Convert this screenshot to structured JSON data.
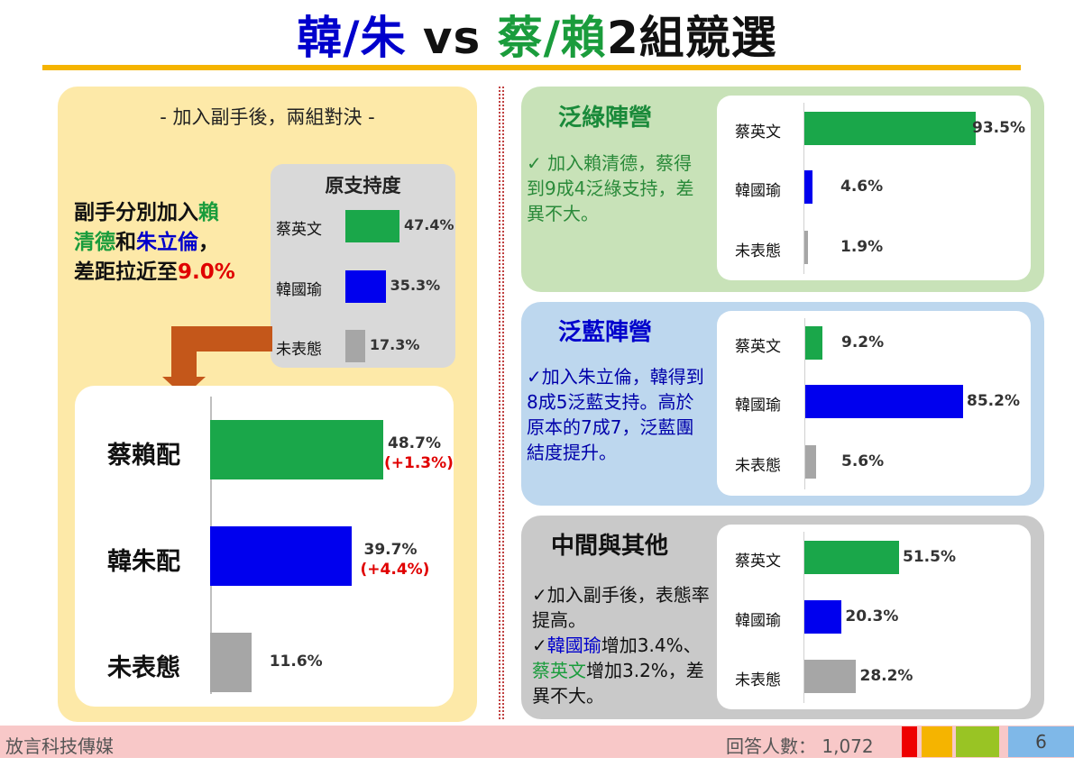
{
  "title": {
    "part1": "韓/朱",
    "part2": " vs ",
    "part3": "蔡/賴",
    "part4": "2組競選"
  },
  "left": {
    "subtitle": "- 加入副手後，兩組對決 -",
    "highlight": {
      "l1a": "副手分別加入",
      "l1b": "賴",
      "l2a": "清德",
      "l2b": "和",
      "l2c": "朱立倫",
      "l2d": "，",
      "l3a": "差距拉近至",
      "l3b": "9.0%"
    },
    "original_title": "原支持度"
  },
  "groups": {
    "green": {
      "title": "泛綠陣營",
      "text": "✓ 加入賴清德，蔡得到9成4泛綠支持，差異不大。"
    },
    "blue": {
      "title": "泛藍陣營",
      "text": "✓加入朱立倫，韓得到8成5泛藍支持。高於原本的7成7，泛藍團結度提升。"
    },
    "gray": {
      "title": "中間與其他",
      "t1": "✓加入副手後，表態率提高。",
      "t2a": "✓",
      "t2b": "韓國瑜",
      "t2c": "增加3.4%、",
      "t2d": "蔡英文",
      "t2e": "增加3.2%，差異不大。"
    }
  },
  "footer": {
    "left": "放言科技傳媒",
    "respondents": "回答人數： 1,072",
    "page": "6"
  },
  "colors": {
    "green": "#1aa74a",
    "blue": "#0000ee",
    "gray": "#a6a6a6",
    "accent": "#f5b400",
    "red": "#e00000"
  },
  "chart_data": [
    {
      "type": "bar",
      "orientation": "horizontal",
      "title": "原支持度",
      "categories": [
        "蔡英文",
        "韓國瑜",
        "未表態"
      ],
      "values": [
        47.4,
        35.3,
        17.3
      ],
      "labels": [
        "47.4%",
        "35.3%",
        "17.3%"
      ]
    },
    {
      "type": "bar",
      "orientation": "horizontal",
      "categories": [
        "蔡賴配",
        "韓朱配",
        "未表態"
      ],
      "values": [
        48.7,
        39.7,
        11.6
      ],
      "labels": [
        "48.7%",
        "39.7%",
        "11.6%"
      ],
      "deltas": [
        "(+1.3%)",
        "(+4.4%)",
        ""
      ]
    },
    {
      "type": "bar",
      "orientation": "horizontal",
      "title": "泛綠陣營",
      "categories": [
        "蔡英文",
        "韓國瑜",
        "未表態"
      ],
      "values": [
        93.5,
        4.6,
        1.9
      ],
      "labels": [
        "93.5%",
        "4.6%",
        "1.9%"
      ]
    },
    {
      "type": "bar",
      "orientation": "horizontal",
      "title": "泛藍陣營",
      "categories": [
        "蔡英文",
        "韓國瑜",
        "未表態"
      ],
      "values": [
        9.2,
        85.2,
        5.6
      ],
      "labels": [
        "9.2%",
        "85.2%",
        "5.6%"
      ]
    },
    {
      "type": "bar",
      "orientation": "horizontal",
      "title": "中間與其他",
      "categories": [
        "蔡英文",
        "韓國瑜",
        "未表態"
      ],
      "values": [
        51.5,
        20.3,
        28.2
      ],
      "labels": [
        "51.5%",
        "20.3%",
        "28.2%"
      ]
    }
  ]
}
